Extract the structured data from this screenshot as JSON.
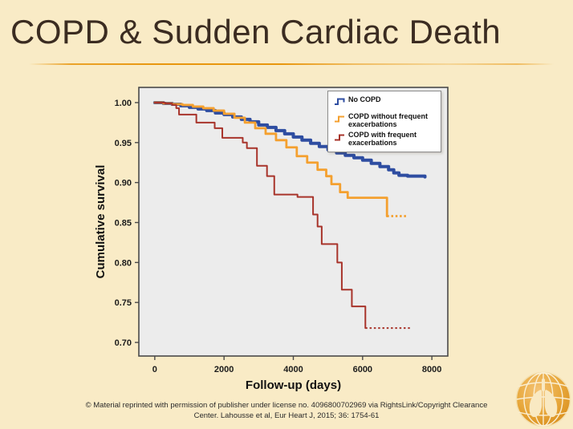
{
  "slide": {
    "title": "COPD & Sudden Cardiac Death",
    "footer_line1": "© Material reprinted with permission of publisher under license no. 4096800702969 via RightsLink/Copyright Clearance",
    "footer_line2": "Center.  Lahousse et al, Eur Heart J, 2015; 36: 1754-61",
    "background_color": "#F9EBC6",
    "title_color": "#3B2C21",
    "separator_color": "#E8960E",
    "logo_name": "globe-with-lungs-logo"
  },
  "chart_data": {
    "type": "line",
    "subtype": "kaplan-meier-step",
    "title": "",
    "xlabel": "Follow-up (days)",
    "ylabel": "Cumulative survival",
    "xlim": [
      -460,
      8460
    ],
    "ylim": [
      0.683,
      1.019
    ],
    "x_ticks": [
      0,
      2000,
      4000,
      6000,
      8000
    ],
    "y_ticks": [
      1.0,
      0.95,
      0.9,
      0.85,
      0.8,
      0.75,
      0.7
    ],
    "grid": false,
    "plot_background": "#ECECEC",
    "frame_color": "#4a4a4a",
    "legend_position": "top-right",
    "series": [
      {
        "name": "No COPD",
        "color": "#2E4DA1",
        "width": 4,
        "points": [
          [
            0,
            1.0
          ],
          [
            250,
            0.999
          ],
          [
            500,
            0.998
          ],
          [
            750,
            0.996
          ],
          [
            1000,
            0.994
          ],
          [
            1250,
            0.992
          ],
          [
            1500,
            0.99
          ],
          [
            1750,
            0.987
          ],
          [
            2000,
            0.985
          ],
          [
            2250,
            0.982
          ],
          [
            2500,
            0.979
          ],
          [
            2750,
            0.976
          ],
          [
            3000,
            0.972
          ],
          [
            3250,
            0.969
          ],
          [
            3500,
            0.965
          ],
          [
            3750,
            0.961
          ],
          [
            4000,
            0.957
          ],
          [
            4250,
            0.953
          ],
          [
            4500,
            0.949
          ],
          [
            4750,
            0.945
          ],
          [
            5000,
            0.941
          ],
          [
            5250,
            0.937
          ],
          [
            5500,
            0.934
          ],
          [
            5750,
            0.931
          ],
          [
            6000,
            0.928
          ],
          [
            6250,
            0.924
          ],
          [
            6500,
            0.92
          ],
          [
            6750,
            0.916
          ],
          [
            6900,
            0.912
          ],
          [
            7050,
            0.909
          ],
          [
            7300,
            0.908
          ],
          [
            7800,
            0.907
          ]
        ]
      },
      {
        "name": "COPD without frequent exacerbations",
        "color": "#F4A02F",
        "width": 2.8,
        "points": [
          [
            0,
            1.0
          ],
          [
            250,
            0.999
          ],
          [
            500,
            0.998
          ],
          [
            800,
            0.997
          ],
          [
            1100,
            0.995
          ],
          [
            1400,
            0.993
          ],
          [
            1700,
            0.99
          ],
          [
            2000,
            0.986
          ],
          [
            2300,
            0.981
          ],
          [
            2600,
            0.975
          ],
          [
            2900,
            0.968
          ],
          [
            3200,
            0.961
          ],
          [
            3500,
            0.953
          ],
          [
            3800,
            0.944
          ],
          [
            4100,
            0.933
          ],
          [
            4400,
            0.925
          ],
          [
            4700,
            0.916
          ],
          [
            4950,
            0.908
          ],
          [
            5100,
            0.898
          ],
          [
            5350,
            0.888
          ],
          [
            5570,
            0.881
          ],
          [
            6704,
            0.858
          ],
          [
            7284,
            0.858
          ]
        ]
      },
      {
        "name": "COPD with frequent exacerbations",
        "color": "#A8342B",
        "width": 2,
        "points": [
          [
            0,
            1.0
          ],
          [
            300,
            0.999
          ],
          [
            500,
            0.997
          ],
          [
            620,
            0.993
          ],
          [
            700,
            0.985
          ],
          [
            1200,
            0.975
          ],
          [
            1730,
            0.968
          ],
          [
            1950,
            0.956
          ],
          [
            2540,
            0.95
          ],
          [
            2660,
            0.943
          ],
          [
            2950,
            0.921
          ],
          [
            3240,
            0.908
          ],
          [
            3450,
            0.885
          ],
          [
            4120,
            0.882
          ],
          [
            4570,
            0.86
          ],
          [
            4700,
            0.845
          ],
          [
            4820,
            0.823
          ],
          [
            5270,
            0.8
          ],
          [
            5400,
            0.766
          ],
          [
            5690,
            0.745
          ],
          [
            6080,
            0.718
          ],
          [
            7420,
            0.718
          ]
        ]
      }
    ]
  }
}
